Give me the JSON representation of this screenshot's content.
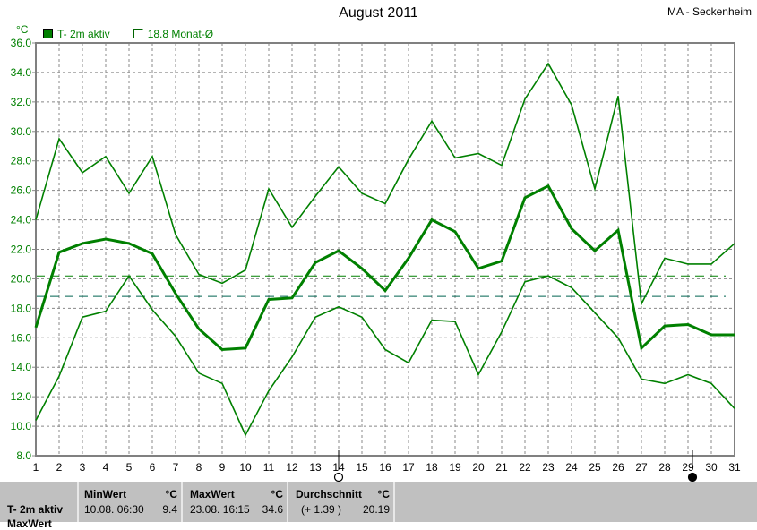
{
  "header": {
    "title": "August 2011",
    "station": "MA - Seckenheim",
    "unit": "°C"
  },
  "legend": [
    {
      "label": "T- 2m aktiv",
      "color": "#008000"
    },
    {
      "label": "18.8 Monat-Ø",
      "color": "#006400"
    }
  ],
  "chart_data": {
    "type": "line",
    "title": "August 2011",
    "ylabel": "°C",
    "x": [
      1,
      2,
      3,
      4,
      5,
      6,
      7,
      8,
      9,
      10,
      11,
      12,
      13,
      14,
      15,
      16,
      17,
      18,
      19,
      20,
      21,
      22,
      23,
      24,
      25,
      26,
      27,
      28,
      29,
      30,
      31
    ],
    "ylim": [
      8,
      36
    ],
    "yticks": [
      "8.0",
      "10.0",
      "12.0",
      "14.0",
      "16.0",
      "18.0",
      "20.0",
      "22.0",
      "24.0",
      "26.0",
      "28.0",
      "30.0",
      "32.0",
      "34.0",
      "36.0"
    ],
    "grid": true,
    "legend_position": "top-left",
    "series": [
      {
        "name": "T- 2m aktiv",
        "role": "max",
        "color": "#008000",
        "values": [
          24.0,
          29.5,
          27.2,
          28.3,
          25.8,
          28.3,
          23.0,
          20.3,
          19.7,
          20.6,
          26.1,
          23.5,
          25.6,
          27.6,
          25.8,
          25.1,
          28.1,
          30.7,
          28.2,
          28.5,
          27.7,
          32.2,
          34.6,
          31.8,
          26.1,
          32.4,
          18.3,
          21.4,
          21.0,
          21.0,
          22.4
        ]
      },
      {
        "role": "mean",
        "color": "#008000",
        "values": [
          16.7,
          21.8,
          22.4,
          22.7,
          22.4,
          21.7,
          19.0,
          16.6,
          15.2,
          15.3,
          18.6,
          18.7,
          21.1,
          21.9,
          20.7,
          19.2,
          21.4,
          24.0,
          23.2,
          20.7,
          21.2,
          25.5,
          26.3,
          23.4,
          21.9,
          23.3,
          15.3,
          16.8,
          16.9,
          16.2,
          16.2
        ]
      },
      {
        "role": "min",
        "color": "#008000",
        "values": [
          10.4,
          13.4,
          17.4,
          17.8,
          20.2,
          17.9,
          16.1,
          13.6,
          12.9,
          9.4,
          12.4,
          14.7,
          17.4,
          18.1,
          17.4,
          15.2,
          14.3,
          17.2,
          17.1,
          13.5,
          16.4,
          19.8,
          20.2,
          19.4,
          17.7,
          16.0,
          13.2,
          12.9,
          13.5,
          12.9,
          11.2
        ]
      }
    ],
    "reference_lines": [
      {
        "value": 20.19,
        "color": "#008000"
      },
      {
        "label": "18.8 Monat-Ø",
        "value": 18.8,
        "color": "#006450"
      }
    ],
    "moon_phases": [
      {
        "day": 14,
        "phase": "full-moon"
      },
      {
        "day": 29,
        "phase": "new-moon"
      }
    ]
  },
  "stats": {
    "row_label": "T- 2m aktiv",
    "next_row_label": "MaxWert",
    "min": {
      "header": "MinWert",
      "unit": "°C",
      "when": "10.08.  06:30",
      "value": "9.4"
    },
    "max": {
      "header": "MaxWert",
      "unit": "°C",
      "when": "23.08.  16:15",
      "value": "34.6"
    },
    "avg": {
      "header": "Durchschnitt",
      "unit": "°C",
      "when": "(+ 1.39 )",
      "value": "20.19"
    }
  }
}
